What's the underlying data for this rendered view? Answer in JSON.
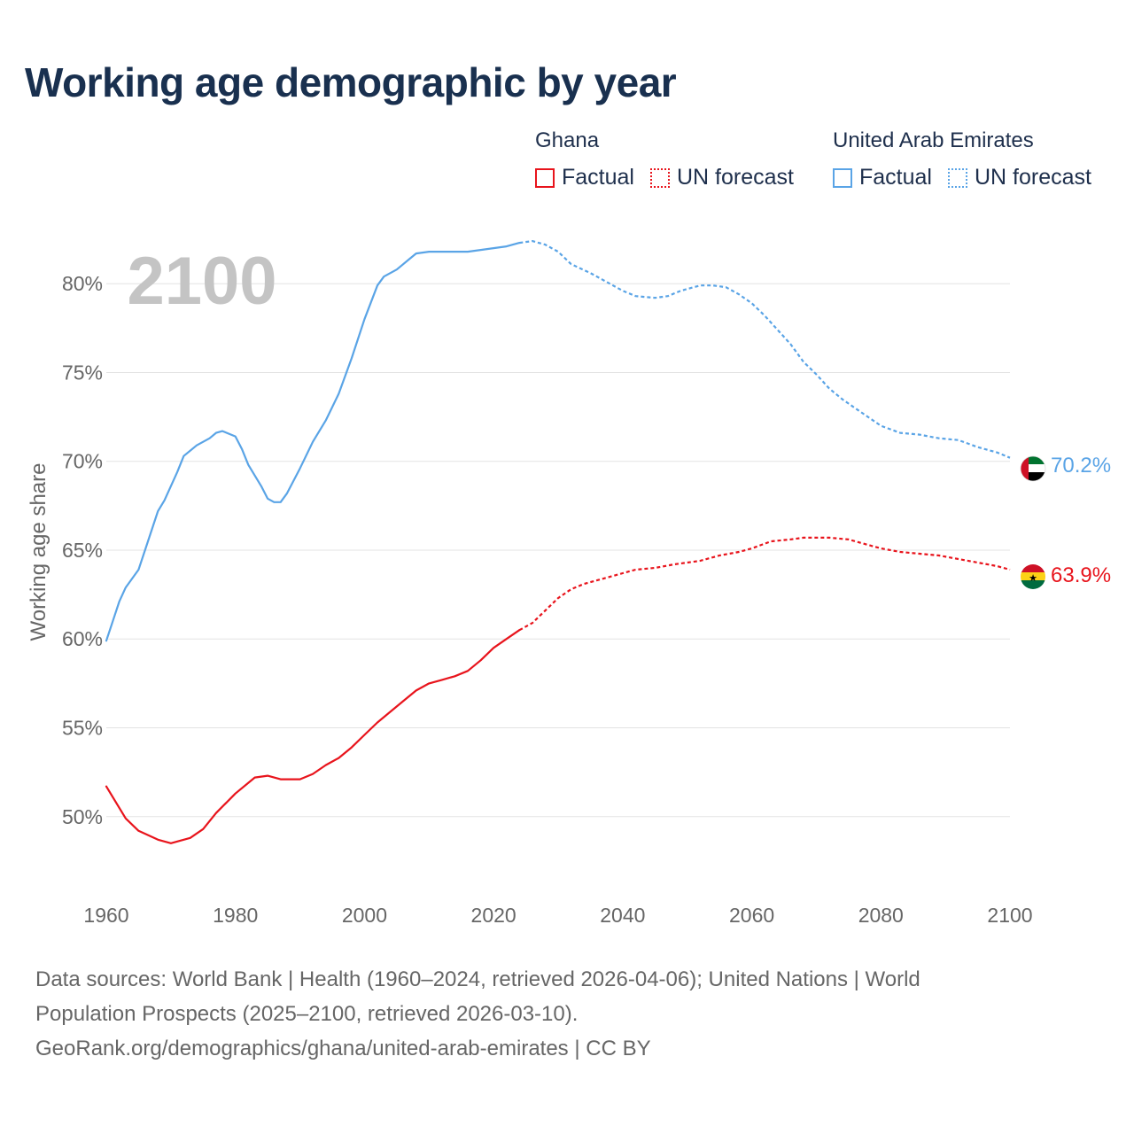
{
  "title": "Working age demographic by year",
  "legend": {
    "groups": [
      {
        "name": "Ghana",
        "factual_label": "Factual",
        "forecast_label": "UN forecast",
        "color": "#e8141c"
      },
      {
        "name": "United Arab Emirates",
        "factual_label": "Factual",
        "forecast_label": "UN forecast",
        "color": "#5aa4e6"
      }
    ]
  },
  "footer": {
    "line1": "Data sources: World Bank | Health (1960–2024, retrieved 2026-04-06); United Nations | World",
    "line2": "Population Prospects (2025–2100, retrieved 2026-03-10).",
    "line3": "GeoRank.org/demographics/ghana/united-arab-emirates | CC BY"
  },
  "chart_data": {
    "type": "line",
    "title": "Working age demographic by year",
    "year_label": "2100",
    "xlabel": "",
    "ylabel": "Working age share",
    "xlim": [
      1960,
      2100
    ],
    "ylim": [
      45.2,
      84
    ],
    "x_ticks": [
      1960,
      1980,
      2000,
      2020,
      2040,
      2060,
      2080,
      2100
    ],
    "y_ticks": [
      50,
      55,
      60,
      65,
      70,
      75,
      80
    ],
    "y_tick_labels": [
      "50%",
      "55%",
      "60%",
      "65%",
      "70%",
      "75%",
      "80%"
    ],
    "grid": true,
    "factual_end_year": 2024,
    "series": [
      {
        "name": "Ghana",
        "color": "#e8141c",
        "end_label": "63.9%",
        "flag": "ghana-flag",
        "points": [
          [
            1960,
            51.7
          ],
          [
            1963,
            49.9
          ],
          [
            1965,
            49.2
          ],
          [
            1968,
            48.7
          ],
          [
            1970,
            48.5
          ],
          [
            1973,
            48.8
          ],
          [
            1975,
            49.3
          ],
          [
            1977,
            50.2
          ],
          [
            1980,
            51.3
          ],
          [
            1983,
            52.2
          ],
          [
            1985,
            52.3
          ],
          [
            1987,
            52.1
          ],
          [
            1990,
            52.1
          ],
          [
            1992,
            52.4
          ],
          [
            1994,
            52.9
          ],
          [
            1996,
            53.3
          ],
          [
            1998,
            53.9
          ],
          [
            2000,
            54.6
          ],
          [
            2002,
            55.3
          ],
          [
            2004,
            55.9
          ],
          [
            2006,
            56.5
          ],
          [
            2008,
            57.1
          ],
          [
            2010,
            57.5
          ],
          [
            2012,
            57.7
          ],
          [
            2014,
            57.9
          ],
          [
            2016,
            58.2
          ],
          [
            2018,
            58.8
          ],
          [
            2020,
            59.5
          ],
          [
            2022,
            60.0
          ],
          [
            2024,
            60.5
          ],
          [
            2026,
            60.9
          ],
          [
            2028,
            61.6
          ],
          [
            2030,
            62.3
          ],
          [
            2032,
            62.8
          ],
          [
            2034,
            63.1
          ],
          [
            2036,
            63.3
          ],
          [
            2038,
            63.5
          ],
          [
            2040,
            63.7
          ],
          [
            2042,
            63.9
          ],
          [
            2045,
            64.0
          ],
          [
            2048,
            64.2
          ],
          [
            2050,
            64.3
          ],
          [
            2052,
            64.4
          ],
          [
            2055,
            64.7
          ],
          [
            2058,
            64.9
          ],
          [
            2060,
            65.1
          ],
          [
            2063,
            65.5
          ],
          [
            2066,
            65.6
          ],
          [
            2068,
            65.7
          ],
          [
            2070,
            65.7
          ],
          [
            2072,
            65.7
          ],
          [
            2075,
            65.6
          ],
          [
            2078,
            65.3
          ],
          [
            2080,
            65.1
          ],
          [
            2083,
            64.9
          ],
          [
            2086,
            64.8
          ],
          [
            2089,
            64.7
          ],
          [
            2092,
            64.5
          ],
          [
            2095,
            64.3
          ],
          [
            2098,
            64.1
          ],
          [
            2100,
            63.9
          ]
        ]
      },
      {
        "name": "United Arab Emirates",
        "color": "#5aa4e6",
        "end_label": "70.2%",
        "flag": "uae-flag",
        "points": [
          [
            1960,
            59.9
          ],
          [
            1961,
            61.0
          ],
          [
            1962,
            62.1
          ],
          [
            1963,
            62.9
          ],
          [
            1965,
            63.9
          ],
          [
            1966,
            65.0
          ],
          [
            1968,
            67.2
          ],
          [
            1969,
            67.8
          ],
          [
            1971,
            69.4
          ],
          [
            1972,
            70.3
          ],
          [
            1974,
            70.9
          ],
          [
            1976,
            71.3
          ],
          [
            1977,
            71.6
          ],
          [
            1978,
            71.7
          ],
          [
            1980,
            71.4
          ],
          [
            1981,
            70.7
          ],
          [
            1982,
            69.8
          ],
          [
            1984,
            68.6
          ],
          [
            1985,
            67.9
          ],
          [
            1986,
            67.7
          ],
          [
            1987,
            67.7
          ],
          [
            1988,
            68.2
          ],
          [
            1990,
            69.6
          ],
          [
            1992,
            71.1
          ],
          [
            1994,
            72.3
          ],
          [
            1996,
            73.8
          ],
          [
            1998,
            75.8
          ],
          [
            2000,
            78.0
          ],
          [
            2002,
            79.9
          ],
          [
            2003,
            80.4
          ],
          [
            2005,
            80.8
          ],
          [
            2007,
            81.4
          ],
          [
            2008,
            81.7
          ],
          [
            2010,
            81.8
          ],
          [
            2012,
            81.8
          ],
          [
            2014,
            81.8
          ],
          [
            2016,
            81.8
          ],
          [
            2018,
            81.9
          ],
          [
            2020,
            82.0
          ],
          [
            2022,
            82.1
          ],
          [
            2024,
            82.3
          ],
          [
            2026,
            82.4
          ],
          [
            2028,
            82.2
          ],
          [
            2030,
            81.8
          ],
          [
            2032,
            81.1
          ],
          [
            2035,
            80.6
          ],
          [
            2038,
            80.0
          ],
          [
            2040,
            79.6
          ],
          [
            2042,
            79.3
          ],
          [
            2045,
            79.2
          ],
          [
            2047,
            79.3
          ],
          [
            2049,
            79.6
          ],
          [
            2052,
            79.9
          ],
          [
            2054,
            79.9
          ],
          [
            2056,
            79.8
          ],
          [
            2058,
            79.4
          ],
          [
            2060,
            78.9
          ],
          [
            2062,
            78.2
          ],
          [
            2064,
            77.4
          ],
          [
            2066,
            76.6
          ],
          [
            2068,
            75.6
          ],
          [
            2070,
            74.9
          ],
          [
            2072,
            74.1
          ],
          [
            2074,
            73.5
          ],
          [
            2076,
            73.0
          ],
          [
            2078,
            72.5
          ],
          [
            2080,
            72.0
          ],
          [
            2083,
            71.6
          ],
          [
            2086,
            71.5
          ],
          [
            2089,
            71.3
          ],
          [
            2092,
            71.2
          ],
          [
            2095,
            70.8
          ],
          [
            2098,
            70.5
          ],
          [
            2100,
            70.2
          ]
        ]
      }
    ]
  }
}
